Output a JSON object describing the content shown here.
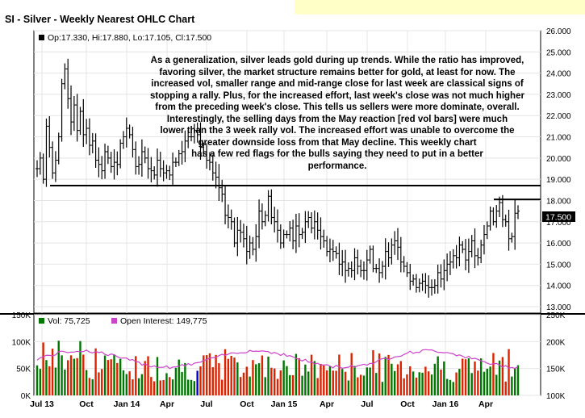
{
  "title": "SI - Silver - Weekly Nearest OHLC Chart",
  "legend_price": "Op:17.330, Hi:17.880, Lo:17.105, Cl:17.500",
  "legend_vol": "Vol: 75,725",
  "legend_oi": "Open Interest: 149,775",
  "annotation": "As a generalization, silver leads gold during up trends.  While the ratio has improved,\nfavoring silver, the market structure remains better for gold, at least for now.  The\nincreased vol, smaller range and mid-range close for last week are classical signs of\nstopping a rally.  Plus, for the increased effort, last week's close was not much higher\nfrom the preceding week's close.  This tells us sellers were more dominate, overall.\nInterestingly, the selling days from the May reaction [red vol bars] were much\nlower than the 3 week rally vol.  The increased effort was unable to overcome the\ngreater downside loss from that May decline.  This weekly chart\nhas a few red flags for the bulls saying they need to put in a better\nperformance.",
  "colors": {
    "up": "#007700",
    "down": "#dd2200",
    "vol_blue": "#0000cc",
    "oi": "#cc44cc",
    "price": "#000000",
    "last_box": "#000000"
  },
  "chart_data": [
    {
      "type": "ohlc",
      "title": "SI - Silver - Weekly Nearest OHLC Chart",
      "y_ticks": [
        "26.000",
        "25.000",
        "24.000",
        "23.000",
        "22.000",
        "21.000",
        "20.000",
        "19.000",
        "18.000",
        "17.000",
        "16.000",
        "15.000",
        "14.000",
        "13.000"
      ],
      "ylim": [
        13,
        26
      ],
      "x_ticks": [
        "Jul 13",
        "Oct",
        "Jan 14",
        "Apr",
        "Jul",
        "Oct",
        "Jan 15",
        "Apr",
        "Jul",
        "Oct",
        "Jan 16",
        "Apr"
      ],
      "last_value": "17.500",
      "horizontal_lines": [
        {
          "value": 18.7
        },
        {
          "value": 18.05
        }
      ],
      "closes": [
        19.5,
        20.0,
        19.0,
        21.5,
        20.5,
        19.3,
        19.9,
        21.0,
        23.5,
        24.2,
        22.8,
        21.7,
        22.5,
        21.3,
        22.2,
        21.1,
        21.4,
        20.6,
        20.8,
        19.9,
        19.7,
        19.4,
        20.3,
        20.0,
        19.6,
        19.8,
        19.7,
        20.7,
        21.0,
        21.4,
        21.1,
        20.4,
        19.6,
        19.7,
        20.3,
        20.0,
        19.5,
        19.4,
        19.2,
        19.9,
        19.5,
        19.3,
        19.4,
        19.2,
        19.8,
        19.8,
        20.2,
        20.3,
        20.8,
        21.0,
        21.0,
        21.3,
        21.1,
        20.5,
        20.3,
        19.9,
        19.8,
        19.3,
        19.1,
        18.6,
        18.3,
        17.3,
        17.2,
        17.0,
        16.0,
        16.6,
        16.5,
        16.2,
        15.6,
        16.0,
        15.7,
        16.3,
        17.5,
        17.0,
        17.3,
        18.2,
        17.2,
        17.0,
        16.6,
        16.0,
        16.4,
        16.4,
        16.7,
        16.1,
        16.8,
        16.4,
        16.5,
        17.0,
        17.2,
        16.7,
        17.0,
        16.6,
        16.3,
        16.1,
        15.6,
        15.7,
        15.6,
        15.5,
        15.0,
        15.1,
        14.7,
        14.8,
        14.7,
        15.3,
        14.9,
        14.7,
        14.7,
        15.2,
        15.7,
        14.8,
        14.8,
        14.6,
        14.9,
        15.6,
        15.3,
        15.9,
        16.1,
        15.8,
        15.1,
        14.9,
        14.6,
        14.2,
        14.3,
        13.9,
        14.1,
        14.2,
        14.0,
        13.9,
        13.9,
        14.0,
        14.6,
        14.3,
        14.7,
        15.0,
        15.1,
        15.4,
        15.3,
        15.9,
        15.7,
        15.2,
        15.6,
        16.1,
        15.4,
        15.3,
        15.9,
        16.4,
        16.8,
        17.5,
        17.0,
        17.5,
        17.9,
        17.1,
        17.0,
        16.2,
        16.3,
        17.4,
        17.5
      ]
    },
    {
      "type": "bar",
      "y_ticks": [
        "150K",
        "100K",
        "50K",
        "0K"
      ],
      "ylim": [
        0,
        150000
      ],
      "series": [
        {
          "name": "Vol: 75,725"
        }
      ],
      "last_value": 75725
    },
    {
      "type": "line",
      "y_ticks": [
        "250K",
        "200K",
        "150K",
        "100K"
      ],
      "ylim": [
        100000,
        250000
      ],
      "series": [
        {
          "name": "Open Interest: 149,775"
        }
      ],
      "last_value": 149775
    }
  ]
}
